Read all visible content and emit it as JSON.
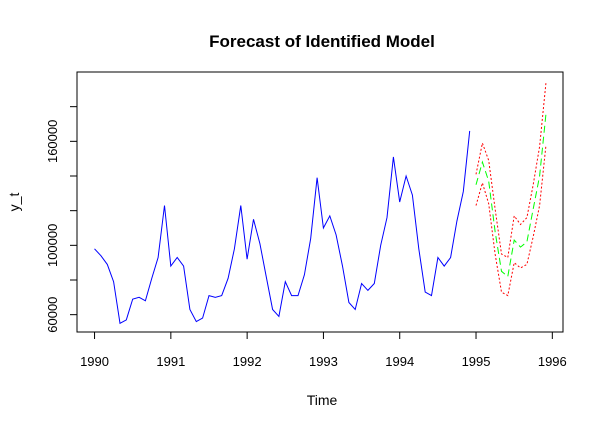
{
  "chart_data": {
    "type": "line",
    "title": "Forecast of Identified Model",
    "xlabel": "Time",
    "ylabel": "y_t",
    "xlim": [
      1989.77,
      1996.14
    ],
    "ylim": [
      50000,
      200000
    ],
    "x_ticks": [
      1990,
      1991,
      1992,
      1993,
      1994,
      1995,
      1996
    ],
    "x_tick_labels": [
      "1990",
      "1991",
      "1992",
      "1993",
      "1994",
      "1995",
      "1996"
    ],
    "y_ticks": [
      60000,
      80000,
      100000,
      120000,
      140000,
      160000,
      180000
    ],
    "y_tick_labels": [
      "60000",
      "",
      "100000",
      "",
      "",
      "160000",
      ""
    ],
    "grid": false,
    "legend": "none",
    "start": 1990,
    "frequency": 12,
    "series": [
      {
        "role": "observed",
        "color": "#0000ff",
        "line_style": "solid",
        "start": 1990.0,
        "values": [
          98000,
          94000,
          89000,
          79000,
          55000,
          57000,
          69000,
          70000,
          68000,
          81000,
          93000,
          123000,
          88000,
          93000,
          88000,
          63000,
          56000,
          58000,
          71000,
          70000,
          71000,
          81000,
          98000,
          123000,
          92000,
          115000,
          101000,
          82000,
          63000,
          59000,
          79000,
          71000,
          71000,
          83000,
          104000,
          139000,
          110000,
          117000,
          106000,
          88000,
          67000,
          63000,
          78000,
          74000,
          78000,
          100000,
          116000,
          151000,
          125000,
          140000,
          129000,
          98000,
          73000,
          71000,
          93000,
          88000,
          93000,
          114000,
          131000,
          166000
        ]
      },
      {
        "role": "forecast",
        "color": "#00ff00",
        "line_style": "dashed",
        "start": 1995.0,
        "values": [
          135000,
          148000,
          137000,
          108000,
          85000,
          82000,
          103000,
          99000,
          102000,
          121000,
          140000,
          176000
        ]
      },
      {
        "role": "upper-bound",
        "color": "#ff0000",
        "line_style": "dotted",
        "start": 1995.0,
        "values": [
          141000,
          159000,
          149000,
          121000,
          95000,
          93000,
          117000,
          112000,
          116000,
          135000,
          157000,
          194000
        ]
      },
      {
        "role": "lower-bound",
        "color": "#ff0000",
        "line_style": "dotted",
        "start": 1995.0,
        "values": [
          123000,
          136000,
          124000,
          95000,
          73000,
          71000,
          90000,
          87000,
          89000,
          105000,
          123000,
          158000
        ]
      }
    ]
  }
}
